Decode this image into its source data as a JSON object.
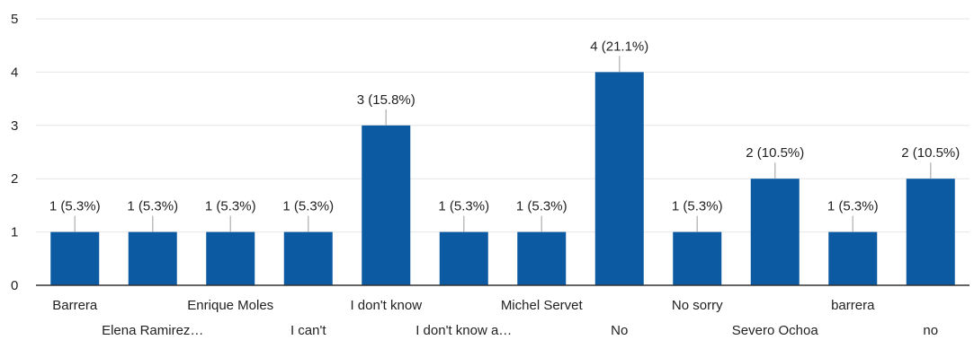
{
  "chart_data": {
    "type": "bar",
    "categories": [
      "Barrera",
      "Elena Ramirez…",
      "Enrique Moles",
      "I can't",
      "I don't know",
      "I don't know a…",
      "Michel Servet",
      "No",
      "No sorry",
      "Severo Ochoa",
      "barrera",
      "no"
    ],
    "values": [
      1,
      1,
      1,
      1,
      3,
      1,
      1,
      4,
      1,
      2,
      1,
      2
    ],
    "data_labels": [
      "1 (5.3%)",
      "1 (5.3%)",
      "1 (5.3%)",
      "1 (5.3%)",
      "3 (15.8%)",
      "1 (5.3%)",
      "1 (5.3%)",
      "4 (21.1%)",
      "1 (5.3%)",
      "2 (10.5%)",
      "1 (5.3%)",
      "2 (10.5%)"
    ],
    "yticks": [
      0,
      1,
      2,
      3,
      4,
      5
    ],
    "ylim": [
      0,
      5
    ],
    "title": "",
    "xlabel": "",
    "ylabel": "",
    "grid": true,
    "legend": "none",
    "bar_color": "#0b5aa2"
  }
}
